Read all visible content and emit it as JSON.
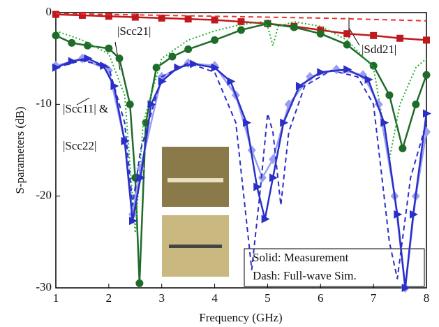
{
  "chart_data": {
    "type": "line",
    "x_label": "Frequency (GHz)",
    "y_label": "S-parameters (dB)",
    "xlim": [
      1,
      8
    ],
    "xticks": [
      1,
      2,
      3,
      4,
      5,
      6,
      7,
      8
    ],
    "ylim": [
      -30,
      0
    ],
    "yticks": [
      0,
      -10,
      -20,
      -30
    ],
    "series": [
      {
        "color": "#c0191c",
        "dash": false,
        "marker": "square",
        "x": [
          1.0,
          1.5,
          2.0,
          2.5,
          3.0,
          3.5,
          4.0,
          4.5,
          5.0,
          5.5,
          6.0,
          6.5,
          7.0,
          7.5,
          8.0
        ],
        "values": [
          -0.2,
          -0.3,
          -0.4,
          -0.5,
          -0.6,
          -0.7,
          -0.8,
          -1.0,
          -1.2,
          -1.5,
          -1.9,
          -2.3,
          -2.5,
          -2.8,
          -3.0
        ]
      },
      {
        "color": "#e8332e",
        "dash": true,
        "marker": "none",
        "x": [
          1,
          2,
          3,
          4,
          5,
          6,
          7,
          8
        ],
        "values": [
          -0.1,
          -0.2,
          -0.3,
          -0.4,
          -0.5,
          -0.6,
          -0.75,
          -0.9
        ]
      },
      {
        "color": "#1f6b2a",
        "dash": false,
        "marker": "circle",
        "x": [
          1.0,
          1.3,
          1.6,
          2.0,
          2.2,
          2.4,
          2.5,
          2.58,
          2.7,
          2.9,
          3.2,
          3.5,
          4.0,
          4.5,
          5.0,
          5.5,
          6.0,
          6.5,
          7.0,
          7.3,
          7.55,
          7.8,
          8.0
        ],
        "values": [
          -2.5,
          -3.3,
          -3.6,
          -3.9,
          -5,
          -10,
          -18,
          -29.5,
          -12,
          -6,
          -4.8,
          -4,
          -3,
          -1.9,
          -1.2,
          -1.6,
          -2.3,
          -3.5,
          -5.8,
          -9,
          -14.8,
          -10,
          -6.8
        ]
      },
      {
        "color": "#22b02a",
        "dash": "dot",
        "marker": "none",
        "x": [
          1.0,
          1.5,
          2.0,
          2.3,
          2.5,
          2.65,
          3.0,
          3.5,
          4.0,
          4.5,
          4.9,
          5.0,
          5.1,
          5.2,
          5.5,
          6.0,
          6.5,
          7.0,
          7.3,
          7.5,
          7.8,
          8.0
        ],
        "values": [
          -2,
          -3,
          -4.5,
          -9,
          -24,
          -12,
          -5,
          -3,
          -2,
          -1.3,
          -1,
          -1.5,
          -3.6,
          -1.5,
          -1,
          -1.5,
          -3,
          -6,
          -16,
          -10,
          -6,
          -5
        ]
      },
      {
        "color": "#9a9ff0",
        "dash": false,
        "marker": "diamond",
        "x": [
          1.0,
          1.5,
          2.0,
          2.3,
          2.45,
          2.6,
          3.0,
          3.5,
          4.0,
          4.4,
          4.7,
          4.9,
          5.1,
          5.4,
          5.8,
          6.3,
          6.8,
          7.1,
          7.4,
          7.6,
          7.8,
          8.0
        ],
        "values": [
          -5.8,
          -5,
          -6.3,
          -14,
          -22,
          -17,
          -7,
          -5.5,
          -5.8,
          -9,
          -15,
          -18,
          -16,
          -10,
          -7,
          -6.2,
          -6.8,
          -10,
          -20,
          -30,
          -20,
          -13
        ]
      },
      {
        "color": "#2a2fc8",
        "dash": true,
        "marker": "none",
        "x": [
          1.0,
          1.5,
          2.0,
          2.3,
          2.45,
          2.6,
          3.0,
          3.5,
          4.0,
          4.4,
          4.7,
          4.85,
          5.0,
          5.1,
          5.25,
          5.4,
          5.7,
          6.2,
          6.7,
          7.0,
          7.3,
          7.45,
          7.7,
          8.0
        ],
        "values": [
          -6,
          -5.2,
          -6,
          -12,
          -21,
          -15,
          -7,
          -5.5,
          -6.5,
          -12,
          -28,
          -20,
          -11,
          -13,
          -21,
          -13,
          -8,
          -6.3,
          -7,
          -10,
          -25,
          -29,
          -18,
          -12
        ]
      },
      {
        "color": "#2a2fc8",
        "dash": false,
        "marker": "triangle",
        "x": [
          1.0,
          1.3,
          1.6,
          1.9,
          2.1,
          2.3,
          2.45,
          2.6,
          2.8,
          3.0,
          3.3,
          3.6,
          4.0,
          4.3,
          4.6,
          4.8,
          4.95,
          5.1,
          5.3,
          5.6,
          6.0,
          6.5,
          6.9,
          7.2,
          7.45,
          7.6,
          7.75,
          8.0
        ],
        "values": [
          -6,
          -5.3,
          -5,
          -5.8,
          -8,
          -14,
          -22.7,
          -18,
          -10,
          -7.5,
          -6,
          -5.6,
          -6,
          -7.5,
          -12,
          -19,
          -22.5,
          -18,
          -12,
          -8,
          -6.5,
          -6.2,
          -7.3,
          -12,
          -22,
          -30,
          -22,
          -11
        ]
      }
    ],
    "annotations": [
      "|Scc21|",
      "|Scc11| &",
      "|Scc22|",
      "|Sdd21|",
      "Solid: Measurement",
      "Dash: Full-wave Sim."
    ]
  }
}
